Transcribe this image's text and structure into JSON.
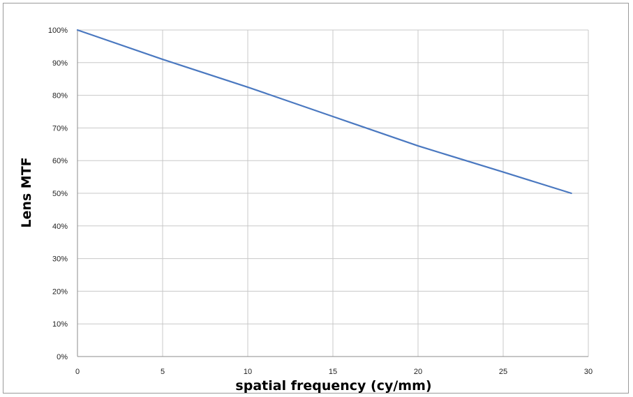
{
  "chart_data": {
    "type": "line",
    "title": "",
    "xlabel": "spatial frequency (cy/mm)",
    "ylabel": "Lens MTF",
    "xlim": [
      0,
      30
    ],
    "ylim": [
      0,
      100
    ],
    "x_ticks": [
      0,
      5,
      10,
      15,
      20,
      25,
      30
    ],
    "x_tick_labels": [
      "0",
      "5",
      "10",
      "15",
      "20",
      "25",
      "30"
    ],
    "y_ticks": [
      0,
      10,
      20,
      30,
      40,
      50,
      60,
      70,
      80,
      90,
      100
    ],
    "y_tick_labels": [
      "0%",
      "10%",
      "20%",
      "30%",
      "40%",
      "50%",
      "60%",
      "70%",
      "80%",
      "90%",
      "100%"
    ],
    "grid": true,
    "legend": "none",
    "series": [
      {
        "color": "#4a78c0",
        "x": [
          0,
          5,
          10,
          15,
          20,
          25,
          29
        ],
        "y": [
          100,
          91,
          82.5,
          73.5,
          64.5,
          56.5,
          50
        ]
      }
    ]
  }
}
